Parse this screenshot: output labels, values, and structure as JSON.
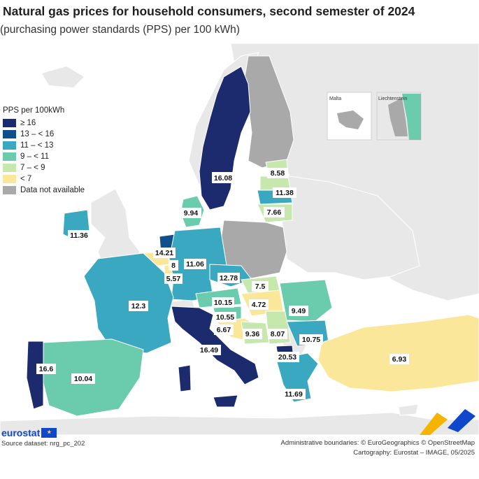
{
  "title": "Natural gas prices for household consumers, second semester of 2024",
  "subtitle": "(purchasing power standards (PPS) per 100 kWh)",
  "legend": {
    "title": "PPS per 100kWh",
    "items": [
      {
        "label": "≥ 16",
        "color": "#1c2a6e"
      },
      {
        "label": "13 – < 16",
        "color": "#0f4f8a"
      },
      {
        "label": "11 – < 13",
        "color": "#3aa8c1"
      },
      {
        "label": "9 – < 11",
        "color": "#6bcbad"
      },
      {
        "label": "7 – < 9",
        "color": "#c7e8ad"
      },
      {
        "label": "< 7",
        "color": "#fbe79a"
      },
      {
        "label": "Data not available",
        "color": "#a9a9a9"
      }
    ]
  },
  "insets": {
    "malta": "Malta",
    "liechtenstein": "Liechtenstein"
  },
  "values": {
    "sweden": "16.08",
    "latvia": "8.58",
    "lithuania": "11.38",
    "poland": "7.66",
    "denmark": "9.94",
    "ireland": "11.36",
    "netherlands": "14.21",
    "belgium": "8",
    "luxembourg": "5.57",
    "germany": "11.06",
    "czechia": "12.78",
    "slovakia": "7.5",
    "austria": "10.15",
    "hungary": "4.72",
    "slovenia": "10.55",
    "croatia": "6.67",
    "bosnia": "9.36",
    "serbia": "8.07",
    "romania": "9.49",
    "bulgaria": "10.75",
    "north_macedonia": "20.53",
    "greece": "11.69",
    "france": "12.3",
    "italy": "16.49",
    "spain": "10.04",
    "portugal": "16.6",
    "turkey": "6.93"
  },
  "footer": {
    "brand": "eurostat",
    "source": "Source dataset: nrg_pc_202",
    "boundaries": "Administrative boundaries: © EuroGeographics © OpenStreetMap",
    "cartography": "Cartography: Eurostat – IMAGE, 05/2025"
  }
}
